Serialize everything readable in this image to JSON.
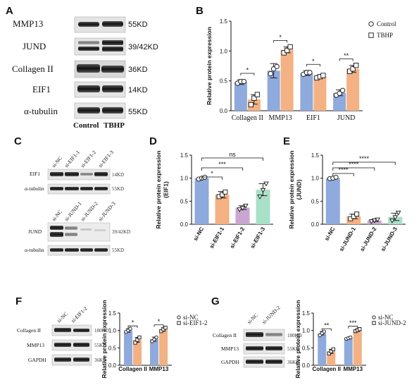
{
  "colors": {
    "control_bar": "#8FAADC",
    "treat_bar": "#F4B183",
    "si3_bar": "#A9E0C8",
    "point_edge": "#111111"
  },
  "panels": {
    "A": "A",
    "B": "B",
    "C": "C",
    "D": "D",
    "E": "E",
    "F": "F",
    "G": "G"
  },
  "blotA": {
    "rows": [
      {
        "protein": "MMP13",
        "size": "55KD"
      },
      {
        "protein": "JUND",
        "size": "39/42KD"
      },
      {
        "protein": "Collagen II",
        "size": "36KD"
      },
      {
        "protein": "EIF1",
        "size": "14KD"
      },
      {
        "protein": "α-tubulin",
        "size": "55KD"
      }
    ],
    "lanes": [
      "Control",
      "TBHP"
    ]
  },
  "blotC": {
    "top_lanes": [
      "si-NC",
      "si-EIF1-1",
      "si-EIF1-2",
      "si-EIF1-3"
    ],
    "top_rows": [
      {
        "protein": "EIF1",
        "size": "14KD"
      },
      {
        "protein": "α-tubulin",
        "size": "55KD"
      }
    ],
    "bottom_lanes": [
      "si-NC",
      "si-JUND-1",
      "si-JUND-2",
      "si-JUND-3"
    ],
    "bottom_rows": [
      {
        "protein": "JUND",
        "size": "39/42KD"
      },
      {
        "protein": "α-tubulin",
        "size": "55KD"
      }
    ]
  },
  "blotF": {
    "lanes": [
      "si-NC",
      "si-EIF1-2"
    ],
    "rows": [
      {
        "protein": "Collagen II",
        "size": "180KD"
      },
      {
        "protein": "MMP13",
        "size": "55KD"
      },
      {
        "protein": "GAPDH",
        "size": "36KD"
      }
    ]
  },
  "blotG": {
    "lanes": [
      "si-NC",
      "si-JUND-2"
    ],
    "rows": [
      {
        "protein": "Collagen II",
        "size": "180KD"
      },
      {
        "protein": "MMP13",
        "size": "55KD"
      },
      {
        "protein": "GAPDH",
        "size": "36KD"
      }
    ]
  },
  "chart_data": [
    {
      "id": "B",
      "type": "bar",
      "ylabel": "Relative protein expression",
      "categories": [
        "Collagen II",
        "MMP13",
        "EIF1",
        "JUND"
      ],
      "ylim": [
        0,
        1.5
      ],
      "yticks": [
        "0.0",
        "0.5",
        "1.0",
        "1.5"
      ],
      "legend": [
        "Control",
        "TBHP"
      ],
      "series": [
        {
          "name": "Control",
          "values": [
            0.48,
            0.67,
            0.63,
            0.3
          ],
          "errors": [
            0.04,
            0.12,
            0.04,
            0.05
          ],
          "points": [
            [
              0.46,
              0.49,
              0.49
            ],
            [
              0.62,
              0.7,
              0.74
            ],
            [
              0.61,
              0.64,
              0.64
            ],
            [
              0.26,
              0.29,
              0.34
            ]
          ]
        },
        {
          "name": "TBHP",
          "values": [
            0.19,
            1.02,
            0.57,
            0.7
          ],
          "errors": [
            0.08,
            0.05,
            0.02,
            0.06
          ],
          "points": [
            [
              0.1,
              0.21,
              0.27
            ],
            [
              0.97,
              1.01,
              1.07
            ],
            [
              0.55,
              0.57,
              0.59
            ],
            [
              0.66,
              0.7,
              0.76
            ]
          ]
        }
      ],
      "significance": [
        "*",
        "*",
        "*",
        "**"
      ]
    },
    {
      "id": "D",
      "type": "bar",
      "ylabel": "Relative protein expression (EIF1)",
      "categories": [
        "si-NC",
        "si-EIF1-1",
        "si-EIF1-2",
        "si-EIF1-3"
      ],
      "ylim": [
        0,
        1.5
      ],
      "yticks": [
        "0.0",
        "0.5",
        "1.0",
        "1.5"
      ],
      "values": [
        1.0,
        0.64,
        0.36,
        0.75
      ],
      "errors": [
        0.02,
        0.07,
        0.04,
        0.13
      ],
      "points": [
        [
          0.98,
          1.0,
          1.02
        ],
        [
          0.6,
          0.64,
          0.7
        ],
        [
          0.32,
          0.35,
          0.4
        ],
        [
          0.6,
          0.74,
          0.88
        ]
      ],
      "significance": [
        {
          "ref": 0,
          "target": 1,
          "label": "*"
        },
        {
          "ref": 0,
          "target": 2,
          "label": "***"
        },
        {
          "ref": 0,
          "target": 3,
          "label": "ns"
        }
      ]
    },
    {
      "id": "E",
      "type": "bar",
      "ylabel": "Relative protein expression (JUND)",
      "categories": [
        "si-NC",
        "si-JUND-1",
        "si-JUND-2",
        "si-JUND-3"
      ],
      "ylim": [
        0,
        1.5
      ],
      "yticks": [
        "0.0",
        "0.5",
        "1.0",
        "1.5"
      ],
      "values": [
        1.0,
        0.17,
        0.08,
        0.16
      ],
      "errors": [
        0.02,
        0.05,
        0.02,
        0.08
      ],
      "points": [
        [
          0.99,
          1.0,
          1.02
        ],
        [
          0.12,
          0.17,
          0.22
        ],
        [
          0.06,
          0.08,
          0.1
        ],
        [
          0.08,
          0.15,
          0.25
        ]
      ],
      "significance": [
        {
          "ref": 0,
          "target": 1,
          "label": "****"
        },
        {
          "ref": 0,
          "target": 2,
          "label": "****"
        },
        {
          "ref": 0,
          "target": 3,
          "label": "****"
        }
      ]
    },
    {
      "id": "F",
      "type": "bar",
      "ylabel": "Relative protein expression",
      "categories": [
        "Collagen II",
        "MMP13"
      ],
      "ylim": [
        0,
        1.5
      ],
      "yticks": [
        "0.0",
        "0.5",
        "1.0",
        "1.5"
      ],
      "legend": [
        "si-NC",
        "si-EIF1-2"
      ],
      "series": [
        {
          "name": "si-NC",
          "values": [
            1.0,
            0.75
          ],
          "errors": [
            0.05,
            0.06
          ],
          "points": [
            [
              0.96,
              1.0,
              1.05
            ],
            [
              0.69,
              0.74,
              0.8
            ]
          ]
        },
        {
          "name": "si-EIF1-2",
          "values": [
            0.73,
            1.03
          ],
          "errors": [
            0.07,
            0.05
          ],
          "points": [
            [
              0.65,
              0.73,
              0.8
            ],
            [
              0.98,
              1.03,
              1.08
            ]
          ]
        }
      ],
      "significance": [
        "*",
        "*"
      ]
    },
    {
      "id": "G",
      "type": "bar",
      "ylabel": "Relative protein expression",
      "categories": [
        "Collagen II",
        "MMP13"
      ],
      "ylim": [
        0,
        1.5
      ],
      "yticks": [
        "0.0",
        "0.5",
        "1.0",
        "1.5"
      ],
      "legend": [
        "si-NC",
        "si-JUND-2"
      ],
      "series": [
        {
          "name": "si-NC",
          "values": [
            0.92,
            0.78
          ],
          "errors": [
            0.05,
            0.02
          ],
          "points": [
            [
              0.86,
              0.92,
              0.97
            ],
            [
              0.76,
              0.78,
              0.8
            ]
          ]
        },
        {
          "name": "si-JUND-2",
          "values": [
            0.4,
            1.01
          ],
          "errors": [
            0.06,
            0.03
          ],
          "points": [
            [
              0.34,
              0.4,
              0.46
            ],
            [
              0.98,
              1.01,
              1.04
            ]
          ]
        }
      ],
      "significance": [
        "**",
        "***"
      ]
    }
  ]
}
